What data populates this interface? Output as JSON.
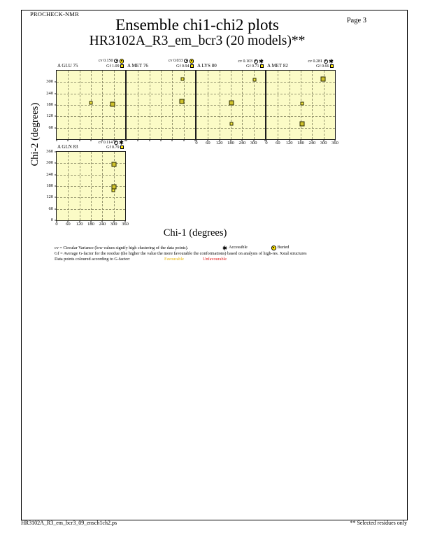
{
  "header": {
    "app": "PROCHECK-NMR",
    "page_label": "Page  3",
    "title": "Ensemble chi1-chi2 plots",
    "subtitle": "HR3102A_R3_em_bcr3 (20 models)**"
  },
  "axes": {
    "x_title": "Chi-1 (degrees)",
    "y_title": "Chi-2 (degrees)"
  },
  "chart_data": {
    "type": "scatter",
    "axis_range": [
      0,
      360
    ],
    "tick_step": 60,
    "grid": true,
    "cv_prefix": "cv",
    "gf_prefix": "Gf",
    "plots": [
      {
        "residue": "A GLU 75",
        "cv": "0.150",
        "gf": "1.09",
        "access": "buried",
        "col": 0,
        "row": 0,
        "y_tick_labels": [
          300,
          240,
          180,
          120,
          60
        ],
        "x_tick_labels": [],
        "points": [
          {
            "chi1": 180,
            "chi2": 190,
            "cluster": false
          },
          {
            "chi1": 295,
            "chi2": 185,
            "cluster": true
          }
        ]
      },
      {
        "residue": "A MET 76",
        "cv": "0.033",
        "gf": "0.94",
        "access": "buried",
        "col": 1,
        "row": 0,
        "y_tick_labels": [],
        "x_tick_labels": [],
        "points": [
          {
            "chi1": 295,
            "chi2": 316,
            "cluster": false
          },
          {
            "chi1": 290,
            "chi2": 200,
            "cluster": true
          }
        ]
      },
      {
        "residue": "A LYS 80",
        "cv": "0.103",
        "gf": "0.71",
        "access": "accessible",
        "col": 2,
        "row": 0,
        "y_tick_labels": [],
        "x_tick_labels": [
          0,
          60,
          120,
          180,
          240,
          300
        ],
        "points": [
          {
            "chi1": 305,
            "chi2": 312,
            "cluster": false
          },
          {
            "chi1": 182,
            "chi2": 190,
            "cluster": true
          },
          {
            "chi1": 182,
            "chi2": 80,
            "cluster": false
          }
        ]
      },
      {
        "residue": "A MET 82",
        "cv": "0.281",
        "gf": "0.66",
        "access": "accessible",
        "col": 3,
        "row": 0,
        "y_tick_labels": [],
        "x_tick_labels": [
          0,
          60,
          120,
          180,
          240,
          300,
          360
        ],
        "points": [
          {
            "chi1": 298,
            "chi2": 316,
            "cluster": true
          },
          {
            "chi1": 187,
            "chi2": 188,
            "cluster": false
          },
          {
            "chi1": 187,
            "chi2": 82,
            "cluster": true
          }
        ]
      },
      {
        "residue": "A GLN 83",
        "cv": "0.114",
        "gf": "0.79",
        "access": "accessible",
        "col": 0,
        "row": 1,
        "y_tick_labels": [
          360,
          300,
          240,
          180,
          120,
          60,
          0
        ],
        "x_tick_labels": [
          0,
          60,
          120,
          180,
          240,
          300,
          360
        ],
        "points": [
          {
            "chi1": 300,
            "chi2": 293,
            "cluster": true
          },
          {
            "chi1": 300,
            "chi2": 178,
            "cluster": true
          },
          {
            "chi1": 298,
            "chi2": 158,
            "cluster": false
          }
        ]
      }
    ]
  },
  "legend": {
    "line1": "cv = Circular Variance (low values signify high clustering of the data points).",
    "accessible_label": "Accessible",
    "buried_label": "Buried",
    "line2": "Gf = Average G-factor for the residue (the higher the value the more favourable the conformations)  based on analysis of high-res. Xstal structures",
    "line3": "Data points coloured according to G-factor:",
    "favourable_label": "Favourable",
    "unfavourable_label": "Unfavourable"
  },
  "footer": {
    "filename": "HR3102A_R3_em_bcr3_09_ensch1ch2.ps",
    "note": "** Selected residues only"
  },
  "icons": {
    "clock": "clock-icon",
    "accessible": "asterisk-star-icon",
    "buried": "sun-circle-icon",
    "favourable": "yellow-square-icon"
  },
  "colors": {
    "panel": "#FBFBC6",
    "grid": "#979770",
    "frame": "#1D1D1D",
    "single_point": "#F2E53C",
    "cluster_point": "#CFC22C",
    "favourable_text": "#E8B400",
    "unfavourable_text": "#E01818"
  }
}
